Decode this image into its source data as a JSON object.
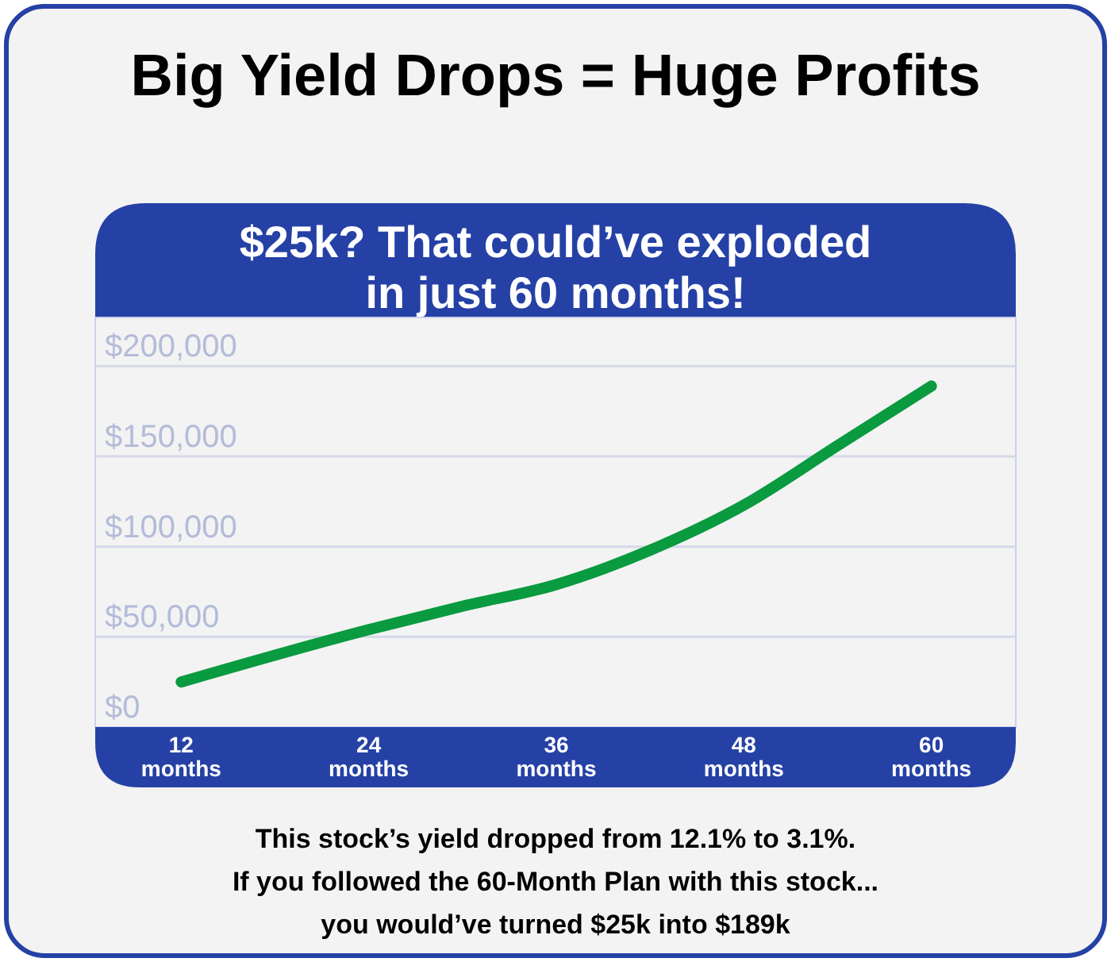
{
  "chart_data": {
    "type": "line",
    "title": "Big Yield Drops = Huge Profits",
    "subtitle": "$25k? That could’ve exploded\nin just 60 months!",
    "x": [
      12,
      24,
      30,
      36,
      42,
      48,
      54,
      60
    ],
    "series": [
      {
        "color": "#0a9a40",
        "values": [
          25000,
          54000,
          67000,
          79000,
          98000,
          123000,
          156000,
          189000
        ]
      }
    ],
    "xlim": [
      6.5,
      65.4
    ],
    "xticks": [
      {
        "value": 12,
        "label": "12 months"
      },
      {
        "value": 24,
        "label": "24 months"
      },
      {
        "value": 36,
        "label": "36 months"
      },
      {
        "value": 48,
        "label": "48 months"
      },
      {
        "value": 60,
        "label": "60 months"
      }
    ],
    "ylim": [
      0,
      227000
    ],
    "yticks": [
      {
        "value": 0,
        "label": "$0"
      },
      {
        "value": 50000,
        "label": "$50,000"
      },
      {
        "value": 100000,
        "label": "$100,000"
      },
      {
        "value": 150000,
        "label": "$150,000"
      },
      {
        "value": 200000,
        "label": "$200,000"
      }
    ],
    "grid": "y",
    "marker": "none",
    "line_style": "solid",
    "annotations": [
      "This stock’s yield dropped from 12.1% to 3.1%.",
      "If you followed the 60-Month Plan with this stock...",
      "you would’ve turned $25k into $189k"
    ]
  }
}
